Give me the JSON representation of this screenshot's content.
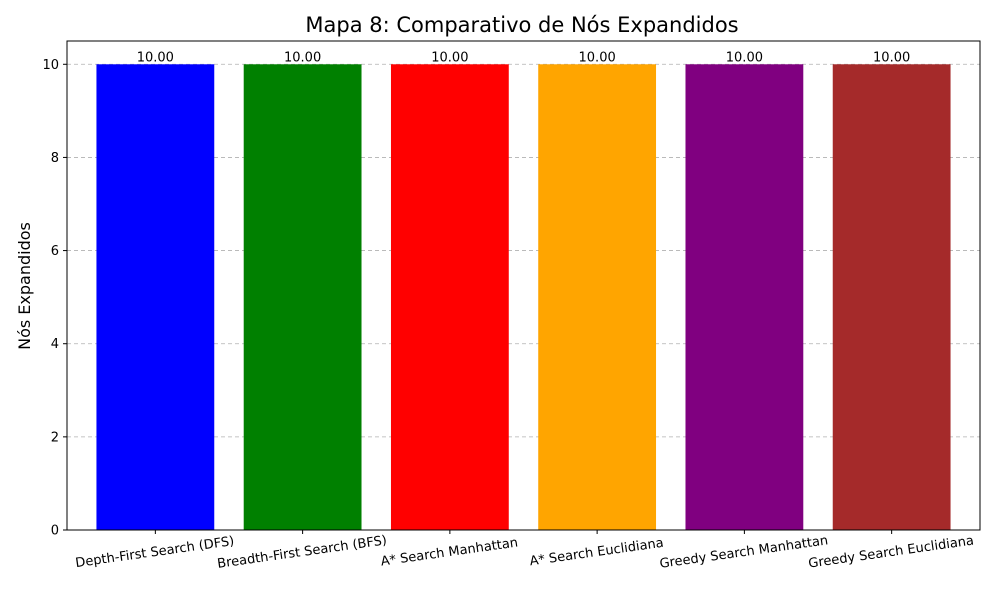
{
  "chart_data": {
    "type": "bar",
    "title": "Mapa 8: Comparativo de Nós Expandidos",
    "xlabel": "",
    "ylabel": "Nós Expandidos",
    "categories": [
      "Depth-First Search (DFS)",
      "Breadth-First Search (BFS)",
      "A* Search Manhattan",
      "A* Search Euclidiana",
      "Greedy Search Manhattan",
      "Greedy Search Euclidiana"
    ],
    "values": [
      10,
      10,
      10,
      10,
      10,
      10
    ],
    "value_labels": [
      "10.00",
      "10.00",
      "10.00",
      "10.00",
      "10.00",
      "10.00"
    ],
    "colors": [
      "#0000ff",
      "#008000",
      "#ff0000",
      "#ffa500",
      "#800080",
      "#a52a2a"
    ],
    "ylim": [
      0,
      10.5
    ],
    "yticks": [
      0,
      2,
      4,
      6,
      8,
      10
    ],
    "grid": "y-dashed",
    "legend": "none"
  }
}
